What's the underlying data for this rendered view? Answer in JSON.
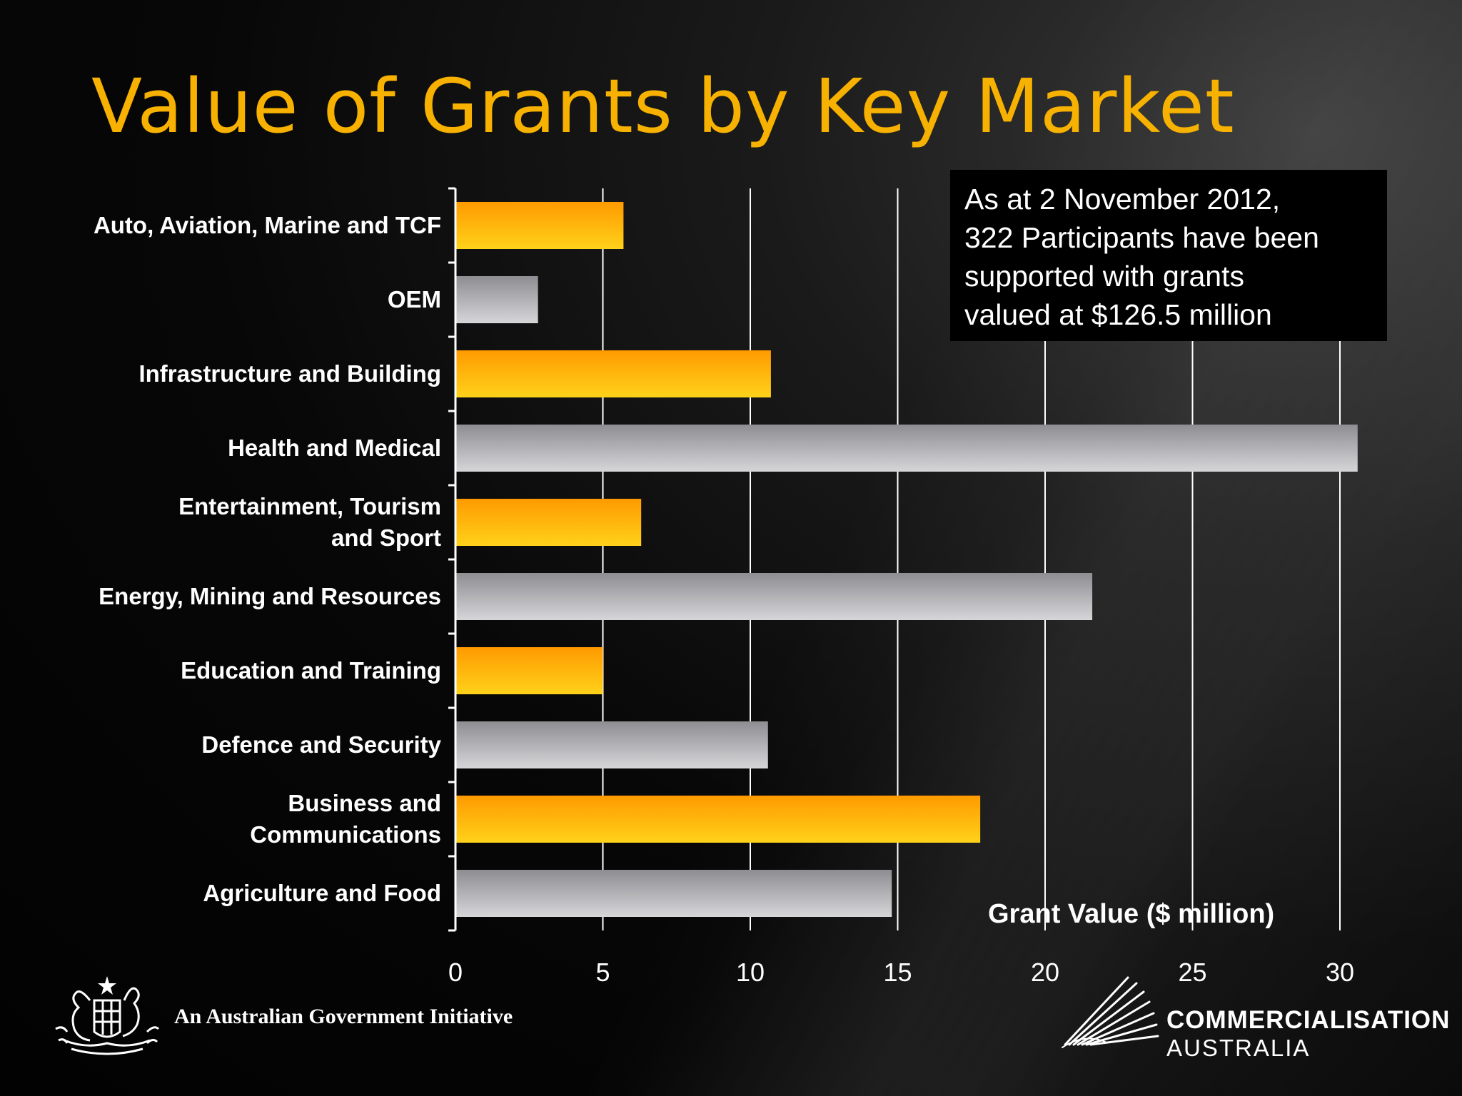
{
  "title": "Value of Grants by Key Market",
  "callout": {
    "lines": [
      "As at 2 November 2012,",
      "322 Participants have been",
      "supported with grants",
      "valued at $126.5 million"
    ]
  },
  "chart_data": {
    "type": "bar",
    "orientation": "horizontal",
    "title": "Value of Grants by Key Market",
    "xlabel": "Grant Value ($ million)",
    "ylabel": "",
    "xlim": [
      0,
      30
    ],
    "xticks": [
      "0",
      "5",
      "10",
      "15",
      "20",
      "25",
      "30"
    ],
    "grid": true,
    "categories": [
      [
        "Auto, Aviation, Marine and TCF"
      ],
      [
        "OEM"
      ],
      [
        "Infrastructure and Building"
      ],
      [
        "Health and Medical"
      ],
      [
        "Entertainment, Tourism",
        "and Sport"
      ],
      [
        "Energy, Mining and Resources"
      ],
      [
        "Education and Training"
      ],
      [
        "Defence and Security"
      ],
      [
        "Business and",
        "Communications"
      ],
      [
        "Agriculture and Food"
      ]
    ],
    "values": [
      5.7,
      2.8,
      10.7,
      30.6,
      6.3,
      21.6,
      5.0,
      10.6,
      17.8,
      14.8
    ]
  },
  "colors": {
    "title": "#f7b100",
    "bar_orange_top": "#ff9a00",
    "bar_orange_bottom": "#ffd21a",
    "bar_grey_top": "#8e8e92",
    "bar_grey_bottom": "#d6d6d9"
  },
  "footer": {
    "gov_text": "An Australian Government Initiative",
    "brand_line1": "COMMERCIALISATION",
    "brand_line2": "AUSTRALIA",
    "gov_emblem": "coat-of-arms-icon",
    "brand_emblem": "radiating-lines-logo-icon"
  }
}
